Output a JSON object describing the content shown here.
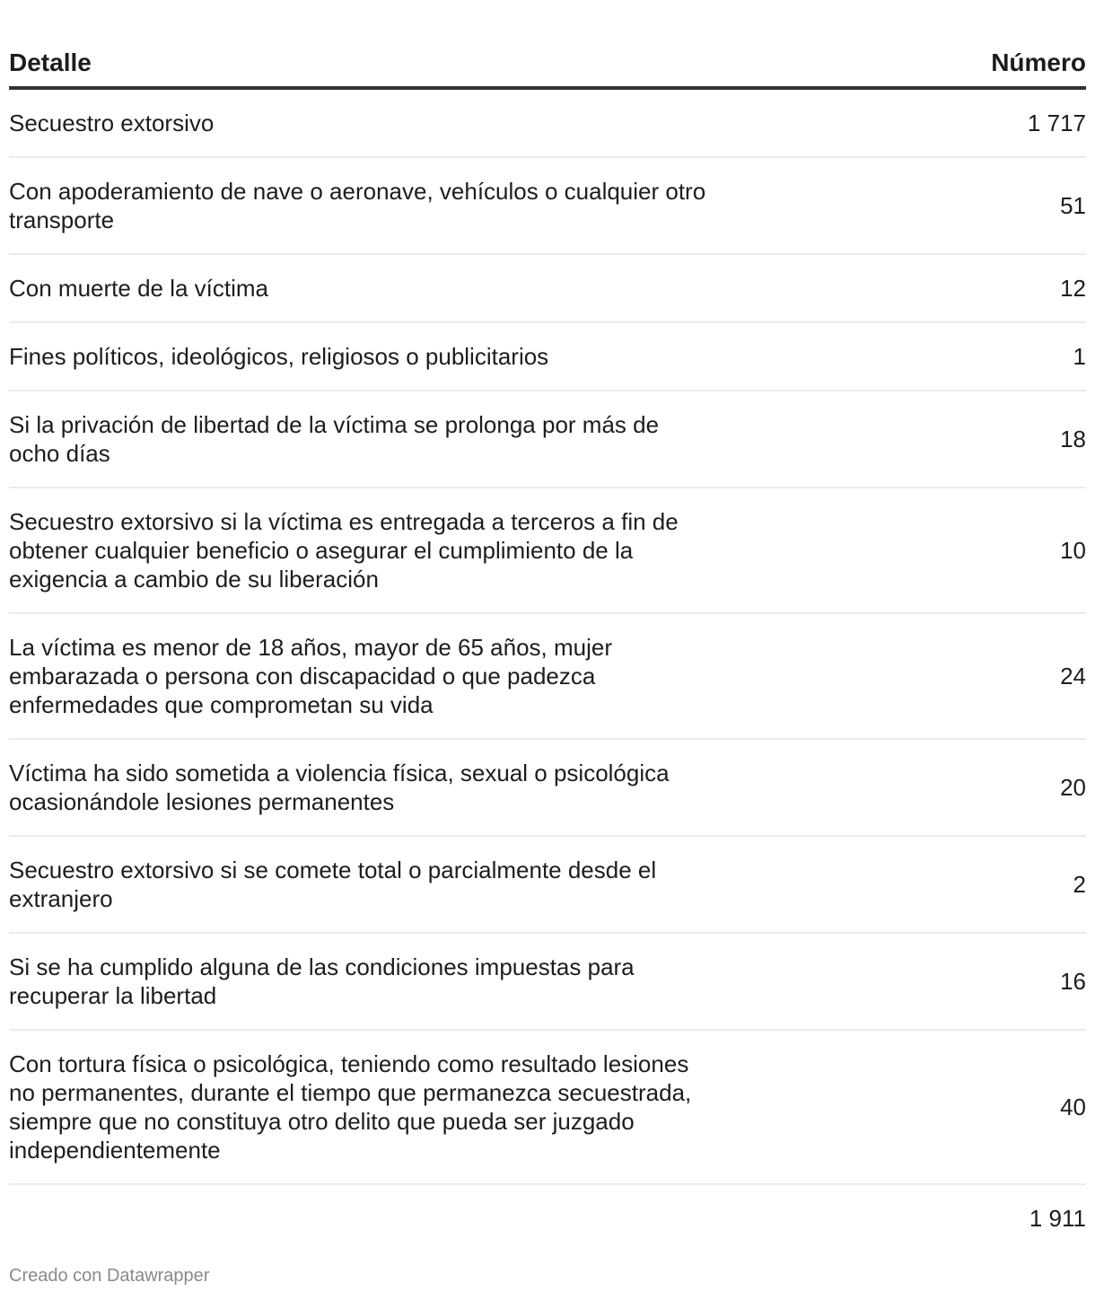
{
  "table": {
    "headers": {
      "detail": "Detalle",
      "number": "Número"
    },
    "rows": [
      {
        "detail": "Secuestro extorsivo",
        "number": "1 717"
      },
      {
        "detail": "Con apoderamiento de nave o aeronave, vehículos o cualquier otro transporte",
        "number": "51"
      },
      {
        "detail": "Con muerte de la víctima",
        "number": "12"
      },
      {
        "detail": "Fines políticos, ideológicos, religiosos o publicitarios",
        "number": "1"
      },
      {
        "detail": "Si la privación de libertad de la víctima se prolonga por más de ocho días",
        "number": "18"
      },
      {
        "detail": "Secuestro extorsivo si la víctima es entregada a terceros a fin de obtener cualquier beneficio o asegurar el cumplimiento de la exigencia a cambio de su liberación",
        "number": "10"
      },
      {
        "detail": "La víctima es menor de 18 años, mayor de 65 años, mujer embarazada o persona con discapacidad o que padezca enfermedades que comprometan su vida",
        "number": "24"
      },
      {
        "detail": "Víctima ha sido sometida a violencia física, sexual o psicológica ocasionándole lesiones permanentes",
        "number": "20"
      },
      {
        "detail": "Secuestro extorsivo si se comete total o parcialmente desde el extranjero",
        "number": "2"
      },
      {
        "detail": "Si se ha cumplido alguna de las condiciones impuestas para recuperar la libertad",
        "number": "16"
      },
      {
        "detail": "Con tortura física o psicológica, teniendo como resultado lesiones no permanentes, durante el tiempo que permanezca secuestrada, siempre que no constituya otro delito que pueda ser juzgado independientemente",
        "number": "40"
      }
    ],
    "total": "1 911"
  },
  "footer": {
    "credit": "Creado con Datawrapper"
  }
}
